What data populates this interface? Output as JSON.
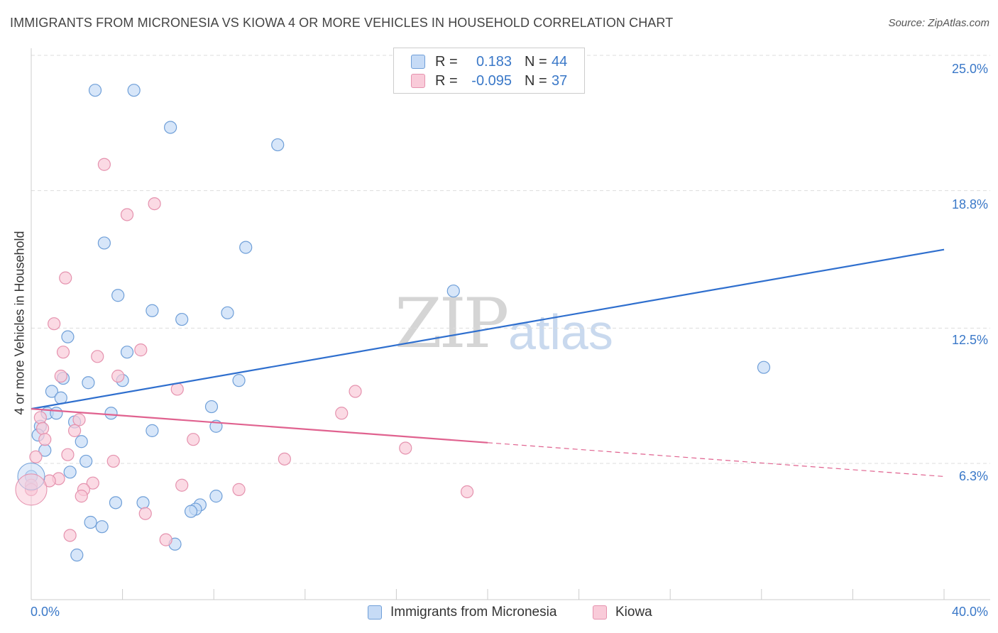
{
  "title": "IMMIGRANTS FROM MICRONESIA VS KIOWA 4 OR MORE VEHICLES IN HOUSEHOLD CORRELATION CHART",
  "source": "Source: ZipAtlas.com",
  "watermark": {
    "zip": "ZIP",
    "atlas": "atlas"
  },
  "legend": {
    "rows": [
      {
        "r_label": "R =",
        "r_value": "0.183",
        "n_label": "N =",
        "n_value": "44"
      },
      {
        "r_label": "R =",
        "r_value": "-0.095",
        "n_label": "N =",
        "n_value": "37"
      }
    ]
  },
  "bottom_legend": {
    "s1": "Immigrants from Micronesia",
    "s2": "Kiowa"
  },
  "axis": {
    "ylabel": "4 or more Vehicles in Household",
    "x_left": "0.0%",
    "x_right": "40.0%",
    "y_ticks": [
      "25.0%",
      "18.8%",
      "12.5%",
      "6.3%"
    ]
  },
  "colors": {
    "blue_fill": "#c6dbf6",
    "blue_stroke": "#6f9fd8",
    "blue_line": "#2f6fce",
    "pink_fill": "#f9cbd9",
    "pink_stroke": "#e592ae",
    "pink_line": "#e0628f",
    "grid": "#dddddd",
    "tick_text": "#3a78c8"
  },
  "chart_data": {
    "type": "scatter",
    "title": "IMMIGRANTS FROM MICRONESIA VS KIOWA 4 OR MORE VEHICLES IN HOUSEHOLD CORRELATION CHART",
    "xlabel": "",
    "ylabel": "4 or more Vehicles in Household",
    "xlim": [
      0,
      40
    ],
    "ylim": [
      0,
      26
    ],
    "y_gridlines": [
      6.3,
      12.5,
      18.8,
      25.0
    ],
    "series": [
      {
        "name": "Immigrants from Micronesia",
        "r": 0.183,
        "n": 44,
        "trend": {
          "x0": 0,
          "y0": 8.8,
          "x1": 40,
          "y1": 16.1,
          "solid_until": 40
        },
        "points": [
          [
            2.8,
            23.4
          ],
          [
            4.5,
            23.4
          ],
          [
            6.1,
            21.7
          ],
          [
            10.8,
            20.9
          ],
          [
            3.2,
            16.4
          ],
          [
            9.4,
            16.2
          ],
          [
            18.5,
            14.2
          ],
          [
            3.8,
            14.0
          ],
          [
            5.3,
            13.3
          ],
          [
            6.6,
            12.9
          ],
          [
            8.6,
            13.2
          ],
          [
            1.6,
            12.1
          ],
          [
            4.2,
            11.4
          ],
          [
            32.1,
            10.7
          ],
          [
            1.4,
            10.2
          ],
          [
            2.5,
            10.0
          ],
          [
            4.0,
            10.1
          ],
          [
            9.1,
            10.1
          ],
          [
            0.9,
            9.6
          ],
          [
            1.3,
            9.3
          ],
          [
            7.9,
            8.9
          ],
          [
            0.7,
            8.6
          ],
          [
            1.1,
            8.6
          ],
          [
            3.5,
            8.6
          ],
          [
            0.4,
            8.0
          ],
          [
            1.9,
            8.2
          ],
          [
            5.3,
            7.8
          ],
          [
            8.1,
            8.0
          ],
          [
            0.3,
            7.6
          ],
          [
            2.2,
            7.3
          ],
          [
            0.6,
            6.9
          ],
          [
            2.4,
            6.4
          ],
          [
            1.7,
            5.9
          ],
          [
            0.0,
            5.7
          ],
          [
            8.1,
            4.8
          ],
          [
            3.7,
            4.5
          ],
          [
            4.9,
            4.5
          ],
          [
            7.4,
            4.4
          ],
          [
            7.2,
            4.2
          ],
          [
            7.0,
            4.1
          ],
          [
            2.6,
            3.6
          ],
          [
            3.1,
            3.4
          ],
          [
            6.3,
            2.6
          ],
          [
            2.0,
            2.1
          ]
        ]
      },
      {
        "name": "Kiowa",
        "r": -0.095,
        "n": 37,
        "trend": {
          "x0": 0,
          "y0": 8.8,
          "x1": 40,
          "y1": 5.7,
          "solid_until": 20
        },
        "points": [
          [
            3.2,
            20.0
          ],
          [
            5.4,
            18.2
          ],
          [
            4.2,
            17.7
          ],
          [
            1.5,
            14.8
          ],
          [
            1.0,
            12.7
          ],
          [
            1.4,
            11.4
          ],
          [
            4.8,
            11.5
          ],
          [
            2.9,
            11.2
          ],
          [
            1.3,
            10.3
          ],
          [
            3.8,
            10.3
          ],
          [
            6.4,
            9.7
          ],
          [
            14.2,
            9.6
          ],
          [
            13.6,
            8.6
          ],
          [
            0.4,
            8.4
          ],
          [
            2.1,
            8.3
          ],
          [
            0.5,
            7.9
          ],
          [
            1.9,
            7.8
          ],
          [
            0.6,
            7.4
          ],
          [
            7.1,
            7.4
          ],
          [
            16.4,
            7.0
          ],
          [
            1.6,
            6.7
          ],
          [
            0.2,
            6.6
          ],
          [
            11.1,
            6.5
          ],
          [
            3.6,
            6.4
          ],
          [
            1.2,
            5.6
          ],
          [
            0.8,
            5.5
          ],
          [
            2.7,
            5.4
          ],
          [
            6.6,
            5.3
          ],
          [
            9.1,
            5.1
          ],
          [
            2.3,
            5.1
          ],
          [
            19.1,
            5.0
          ],
          [
            2.2,
            4.8
          ],
          [
            0.0,
            5.3
          ],
          [
            5.0,
            4.0
          ],
          [
            1.7,
            3.0
          ],
          [
            5.9,
            2.8
          ],
          [
            0.0,
            5.1
          ]
        ]
      }
    ]
  }
}
